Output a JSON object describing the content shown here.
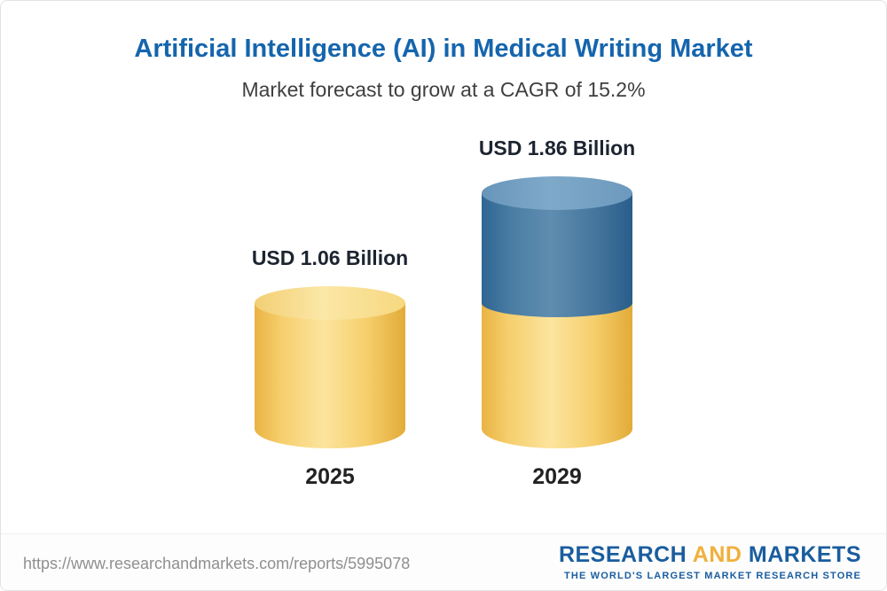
{
  "chart_data": {
    "type": "bar",
    "title": "Artificial Intelligence (AI) in Medical Writing Market",
    "subtitle": "Market forecast to grow at a CAGR of 15.2%",
    "categories": [
      "2025",
      "2029"
    ],
    "values": [
      1.06,
      1.86
    ],
    "value_labels": [
      "USD 1.06 Billion",
      "USD 1.86 Billion"
    ],
    "unit": "USD Billion",
    "cagr": "15.2%",
    "legend_position": "none",
    "grid": "off",
    "colors": {
      "base_segment": "#f3c65a",
      "growth_segment": "#3c76a6",
      "title_text": "#1565ad"
    }
  },
  "footer": {
    "url": "https://www.researchandmarkets.com/reports/5995078",
    "logo": {
      "word1": "RESEARCH",
      "word2": "AND",
      "word3": "MARKETS",
      "tagline": "THE WORLD'S LARGEST MARKET RESEARCH STORE"
    }
  }
}
